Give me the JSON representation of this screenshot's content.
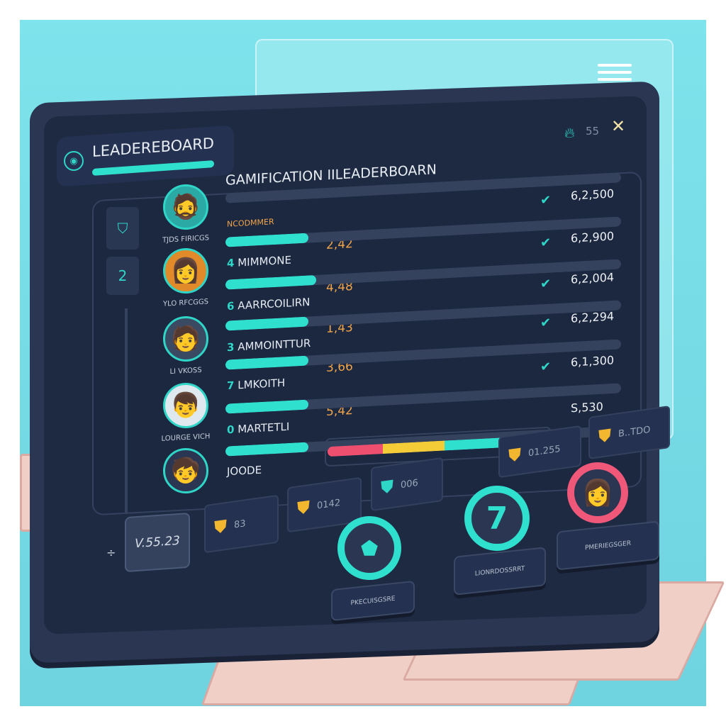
{
  "header": {
    "title": "LEADEREBOARD",
    "streak_count": "55",
    "close_label": "✕"
  },
  "panel": {
    "heading": "GAMIFICATION IILEADERBOARN",
    "column_label": "NCODMMER"
  },
  "nav": {
    "rank_label": "2"
  },
  "players": [
    {
      "avatar_name": "TJDS FIRICGS",
      "avatar": "🧔"
    },
    {
      "avatar_name": "YLO RFCGGS",
      "avatar": "👩"
    },
    {
      "avatar_name": "LI VKOSS",
      "avatar": "🧑"
    },
    {
      "avatar_name": "LOURGE VICH",
      "avatar": "👦"
    },
    {
      "avatar_name": "",
      "avatar": "🧒"
    }
  ],
  "rows": [
    {
      "rank": "4",
      "name": "MIMMONE",
      "score": "2,42",
      "points": "6,2,500",
      "progress": 0.21
    },
    {
      "rank": "6",
      "name": "AARRCOILIRN",
      "score": "4,48",
      "points": "6,2,900",
      "progress": 0.23
    },
    {
      "rank": "3",
      "name": "AMMOINTTUR",
      "score": "1,43",
      "points": "6,2,004",
      "progress": 0.21
    },
    {
      "rank": "7",
      "name": "LMKOITH",
      "score": "3,66",
      "points": "6,2,294",
      "progress": 0.21
    },
    {
      "rank": "0",
      "name": "MARTETLI",
      "score": "5,42",
      "points": "6,1,300",
      "progress": 0.21
    },
    {
      "rank": "",
      "name": "JOODE",
      "score": "",
      "points": "S,530",
      "progress": 0.21
    }
  ],
  "segment_bar": {
    "colors": [
      "#ee4f6e",
      "#f3cc38",
      "#2fe0cf"
    ],
    "segments": [
      0.25,
      0.28,
      0.25
    ]
  },
  "version": "V.55.23",
  "badges": [
    {
      "value": "83"
    },
    {
      "value": "0142"
    },
    {
      "value": "006"
    },
    {
      "value": "01.255"
    },
    {
      "value": "B..TDO"
    }
  ],
  "medals": [
    {
      "label": "PKECUISGSRE"
    },
    {
      "label": "LIONRDOSSRRT",
      "number": "7"
    },
    {
      "label": "PMERIEGSGER"
    }
  ],
  "colors": {
    "accent": "#2fe0cf",
    "score": "#f0a54a",
    "background": "#7fe3ec",
    "panel": "#1e2a42"
  }
}
